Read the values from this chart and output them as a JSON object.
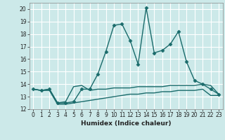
{
  "title": "",
  "xlabel": "Humidex (Indice chaleur)",
  "ylabel": "",
  "bg_color": "#cce9e9",
  "grid_color": "#ffffff",
  "line_color": "#1a6b6b",
  "xlim": [
    -0.5,
    23.5
  ],
  "ylim": [
    12,
    20.5
  ],
  "yticks": [
    12,
    13,
    14,
    15,
    16,
    17,
    18,
    19,
    20
  ],
  "xticks": [
    0,
    1,
    2,
    3,
    4,
    5,
    6,
    7,
    8,
    9,
    10,
    11,
    12,
    13,
    14,
    15,
    16,
    17,
    18,
    19,
    20,
    21,
    22,
    23
  ],
  "series": [
    {
      "x": [
        0,
        1,
        2,
        3,
        4,
        5,
        6,
        7,
        8,
        9,
        10,
        11,
        12,
        13,
        14,
        15,
        16,
        17,
        18,
        19,
        20,
        21,
        22,
        23
      ],
      "y": [
        13.6,
        13.5,
        13.6,
        12.5,
        12.6,
        13.8,
        13.9,
        13.5,
        13.6,
        13.6,
        13.7,
        13.7,
        13.7,
        13.8,
        13.8,
        13.8,
        13.8,
        13.9,
        13.9,
        13.9,
        13.9,
        14.0,
        13.9,
        13.2
      ],
      "marker": null,
      "markersize": null,
      "linewidth": 1.0
    },
    {
      "x": [
        0,
        1,
        2,
        3,
        4,
        5,
        6,
        7,
        8,
        9,
        10,
        11,
        12,
        13,
        14,
        15,
        16,
        17,
        18,
        19,
        20,
        21,
        22,
        23
      ],
      "y": [
        13.6,
        13.5,
        13.6,
        12.5,
        12.5,
        12.6,
        13.6,
        13.6,
        14.8,
        16.6,
        18.7,
        18.8,
        17.5,
        15.6,
        20.1,
        16.5,
        16.7,
        17.2,
        18.2,
        15.8,
        14.3,
        14.0,
        13.6,
        13.2
      ],
      "marker": "D",
      "markersize": 2.5,
      "linewidth": 1.0
    },
    {
      "x": [
        0,
        1,
        2,
        3,
        4,
        5,
        6,
        7,
        8,
        9,
        10,
        11,
        12,
        13,
        14,
        15,
        16,
        17,
        18,
        19,
        20,
        21,
        22,
        23
      ],
      "y": [
        13.6,
        13.5,
        13.5,
        12.4,
        12.4,
        12.5,
        12.6,
        12.7,
        12.8,
        12.9,
        13.0,
        13.1,
        13.2,
        13.2,
        13.3,
        13.3,
        13.4,
        13.4,
        13.5,
        13.5,
        13.5,
        13.6,
        13.1,
        13.1
      ],
      "marker": null,
      "markersize": null,
      "linewidth": 1.0
    }
  ]
}
